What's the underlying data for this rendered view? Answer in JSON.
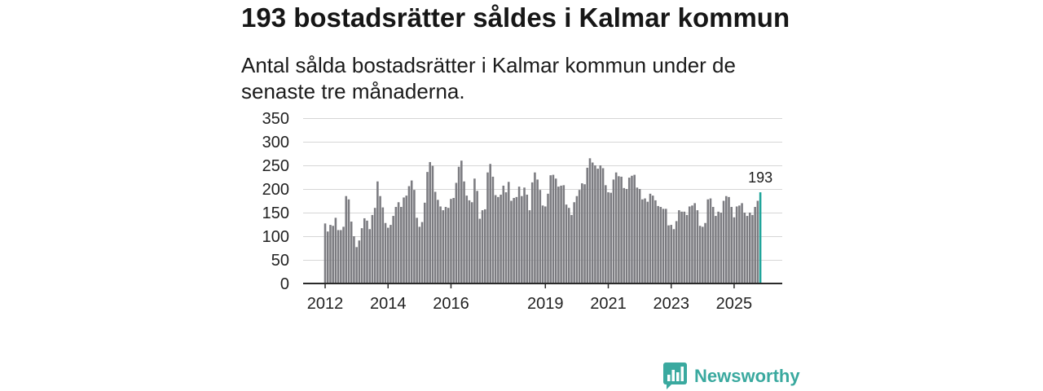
{
  "chart_data": {
    "type": "bar",
    "title": "193 bostadsrätter såldes i Kalmar kommun",
    "subtitle": "Antal sålda bostadsrätter i Kalmar kommun under de senaste tre månaderna.",
    "xlabel": "",
    "ylabel": "",
    "x_start": 2012,
    "x_step": 0.0833333,
    "xlim": [
      2011.3,
      2026.53
    ],
    "ylim": [
      0,
      350
    ],
    "xticks": [
      2012,
      2014,
      2016,
      2019,
      2021,
      2023,
      2025
    ],
    "yticks": [
      0,
      50,
      100,
      150,
      200,
      250,
      300,
      350
    ],
    "grid": true,
    "values": [
      127,
      110,
      124,
      122,
      139,
      113,
      113,
      120,
      185,
      178,
      131,
      100,
      77,
      91,
      117,
      138,
      133,
      115,
      145,
      160,
      216,
      185,
      161,
      128,
      118,
      124,
      143,
      162,
      172,
      162,
      182,
      186,
      206,
      218,
      198,
      139,
      120,
      130,
      171,
      236,
      257,
      249,
      194,
      177,
      163,
      155,
      162,
      160,
      179,
      181,
      213,
      247,
      260,
      216,
      186,
      176,
      172,
      222,
      196,
      137,
      155,
      157,
      235,
      253,
      226,
      187,
      183,
      188,
      207,
      193,
      215,
      175,
      181,
      183,
      205,
      185,
      203,
      188,
      155,
      214,
      235,
      220,
      198,
      165,
      163,
      190,
      229,
      230,
      222,
      205,
      207,
      208,
      167,
      160,
      145,
      172,
      185,
      198,
      212,
      210,
      245,
      265,
      256,
      250,
      243,
      250,
      244,
      208,
      193,
      192,
      220,
      235,
      227,
      226,
      202,
      200,
      224,
      228,
      230,
      203,
      200,
      178,
      180,
      173,
      190,
      186,
      176,
      164,
      162,
      158,
      158,
      123,
      124,
      115,
      132,
      155,
      152,
      152,
      145,
      163,
      165,
      170,
      155,
      122,
      120,
      128,
      178,
      180,
      162,
      143,
      152,
      150,
      175,
      185,
      183,
      162,
      140,
      163,
      165,
      170,
      150,
      143,
      150,
      145,
      162,
      175,
      193
    ],
    "highlight_label": "193",
    "colors": {
      "bar": "#7c7c81",
      "highlight": "#1ea49a",
      "grid": "#d6d6d6",
      "axis": "#2a2a2a"
    }
  },
  "logo": {
    "text": "Newsworthy",
    "icon": "chart-bubble-icon",
    "color": "#3aa99f"
  }
}
